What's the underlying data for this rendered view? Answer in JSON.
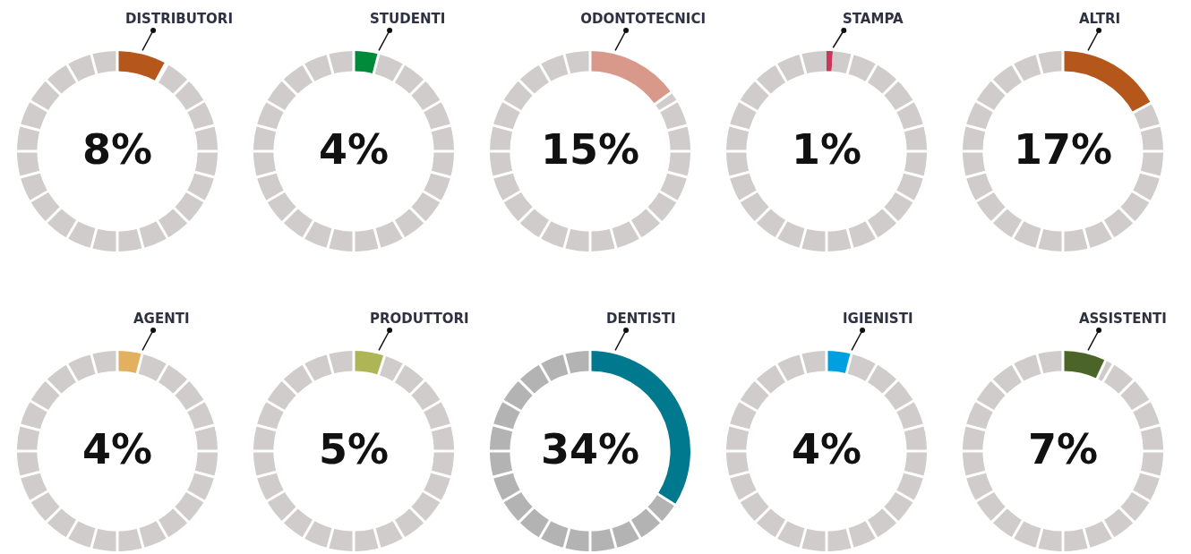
{
  "chart_data": [
    {
      "type": "donut",
      "title": "8%",
      "categories": [
        "DISTRIBUTORI",
        null
      ],
      "values": [
        8,
        92
      ],
      "colors": [
        "#b5561a",
        "#cfcccb"
      ]
    },
    {
      "type": "donut",
      "title": "4%",
      "categories": [
        "STUDENTI",
        null
      ],
      "values": [
        4,
        96
      ],
      "colors": [
        "#008b3a",
        "#cfcccb"
      ]
    },
    {
      "type": "donut",
      "title": "15%",
      "categories": [
        "ODONTOTECNICI",
        null
      ],
      "values": [
        15,
        85
      ],
      "colors": [
        "#d9998a",
        "#cfcccb"
      ]
    },
    {
      "type": "donut",
      "title": "1%",
      "categories": [
        "STAMPA",
        null
      ],
      "values": [
        1,
        99
      ],
      "colors": [
        "#c8385a",
        "#cfcccb"
      ]
    },
    {
      "type": "donut",
      "title": "17%",
      "categories": [
        "ALTRI",
        null
      ],
      "values": [
        17,
        83
      ],
      "colors": [
        "#b5561a",
        "#cfcccb"
      ]
    },
    {
      "type": "donut",
      "title": "4%",
      "categories": [
        "AGENTI",
        null
      ],
      "values": [
        4,
        96
      ],
      "colors": [
        "#e3b060",
        "#cfcccb"
      ]
    },
    {
      "type": "donut",
      "title": "5%",
      "categories": [
        "PRODUTTORI",
        null
      ],
      "values": [
        5,
        95
      ],
      "colors": [
        "#adb556",
        "#cfcccb"
      ]
    },
    {
      "type": "donut",
      "title": "34%",
      "categories": [
        "DENTISTI",
        null
      ],
      "values": [
        34,
        66
      ],
      "colors": [
        "#00798f",
        "#b3b3b3"
      ]
    },
    {
      "type": "donut",
      "title": "4%",
      "categories": [
        "IGIENISTI",
        null
      ],
      "values": [
        4,
        96
      ],
      "colors": [
        "#00a0e0",
        "#cfcccb"
      ]
    },
    {
      "type": "donut",
      "title": "7%",
      "categories": [
        "ASSISTENTI",
        null
      ],
      "values": [
        7,
        93
      ],
      "colors": [
        "#4b6428",
        "#cfcccb"
      ]
    }
  ]
}
